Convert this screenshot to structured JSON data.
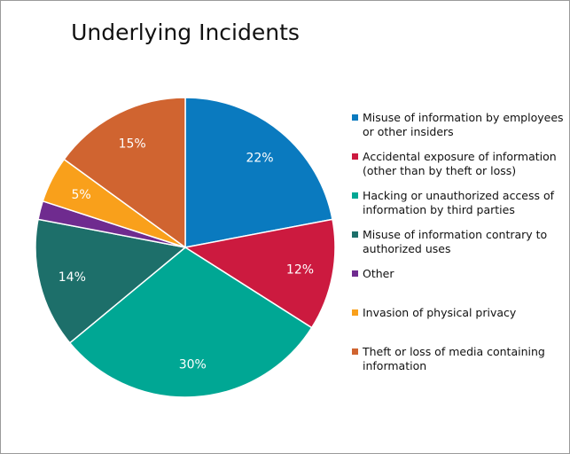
{
  "chart_data": {
    "type": "pie",
    "title": "Underlying Incidents",
    "start": "top",
    "direction": "clockwise",
    "legend_position": "right",
    "slices": [
      {
        "label": "Misuse of information by employees or other insiders",
        "value": 22,
        "data_label": "22%",
        "color": "#0a7abf"
      },
      {
        "label": "Accidental exposure of information (other than by theft or loss)",
        "value": 12,
        "data_label": "12%",
        "color": "#cc1a3f"
      },
      {
        "label": "Hacking or unauthorized access of information by third parties",
        "value": 30,
        "data_label": "30%",
        "color": "#00a794"
      },
      {
        "label": "Misuse of information contrary to authorized uses",
        "value": 14,
        "data_label": "14%",
        "color": "#1d6f6a"
      },
      {
        "label": "Other",
        "value": 2,
        "data_label": "2%",
        "color": "#6f2b8f"
      },
      {
        "label": "Invasion of physical privacy",
        "value": 5,
        "data_label": "5%",
        "color": "#f9a01b"
      },
      {
        "label": "Theft or loss of media containing information",
        "value": 15,
        "data_label": "15%",
        "color": "#d06430"
      }
    ]
  }
}
